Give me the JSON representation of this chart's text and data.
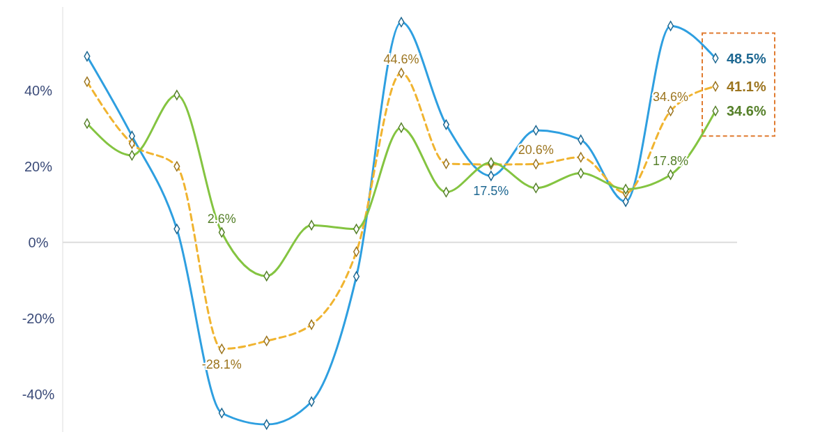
{
  "chart_data": {
    "type": "line",
    "categories": [
      null,
      null,
      null,
      null,
      null,
      null,
      null,
      null,
      null,
      null,
      null,
      null,
      null,
      null,
      null
    ],
    "series": [
      {
        "color": "#2e9fe0",
        "values": [
          49,
          28,
          3.5,
          -45,
          -48,
          -42,
          -9,
          58,
          31,
          17.5,
          29.5,
          27,
          10.7,
          57,
          48.5
        ],
        "value_labels": [
          null,
          null,
          null,
          null,
          null,
          null,
          null,
          null,
          null,
          "17.5%",
          null,
          null,
          null,
          null,
          "48.5%"
        ]
      },
      {
        "color": "#f0b430",
        "line_style": "dashed",
        "values": [
          42.3,
          26,
          20,
          -28.1,
          -26,
          -21.7,
          -2.5,
          44.6,
          20.7,
          20.5,
          20.6,
          22.4,
          13,
          34.6,
          41.1
        ],
        "value_labels": [
          null,
          null,
          null,
          "-28.1%",
          null,
          null,
          null,
          "44.6%",
          null,
          null,
          "20.6%",
          null,
          null,
          "34.6%",
          "41.1%"
        ]
      },
      {
        "color": "#84c441",
        "values": [
          31.3,
          22.9,
          38.8,
          2.6,
          -8.9,
          4.5,
          3.5,
          30.2,
          13.2,
          21,
          14.3,
          18.2,
          14,
          17.8,
          34.6
        ],
        "value_labels": [
          null,
          null,
          null,
          "2.6%",
          null,
          null,
          null,
          null,
          null,
          null,
          null,
          null,
          null,
          "17.8%",
          "34.6%"
        ]
      }
    ],
    "ylim": [
      -50,
      62
    ],
    "yticks": [
      {
        "value": -40,
        "label": "-40%"
      },
      {
        "value": -20,
        "label": "-20%"
      },
      {
        "value": 0,
        "label": "0%"
      },
      {
        "value": 20,
        "label": "20%"
      },
      {
        "value": 40,
        "label": "40%"
      }
    ],
    "ref_lines": [
      {
        "axis": "y",
        "value": 0,
        "color": "#dddddd"
      }
    ],
    "marker": "diamond",
    "line_style": "solid",
    "grid": false
  }
}
